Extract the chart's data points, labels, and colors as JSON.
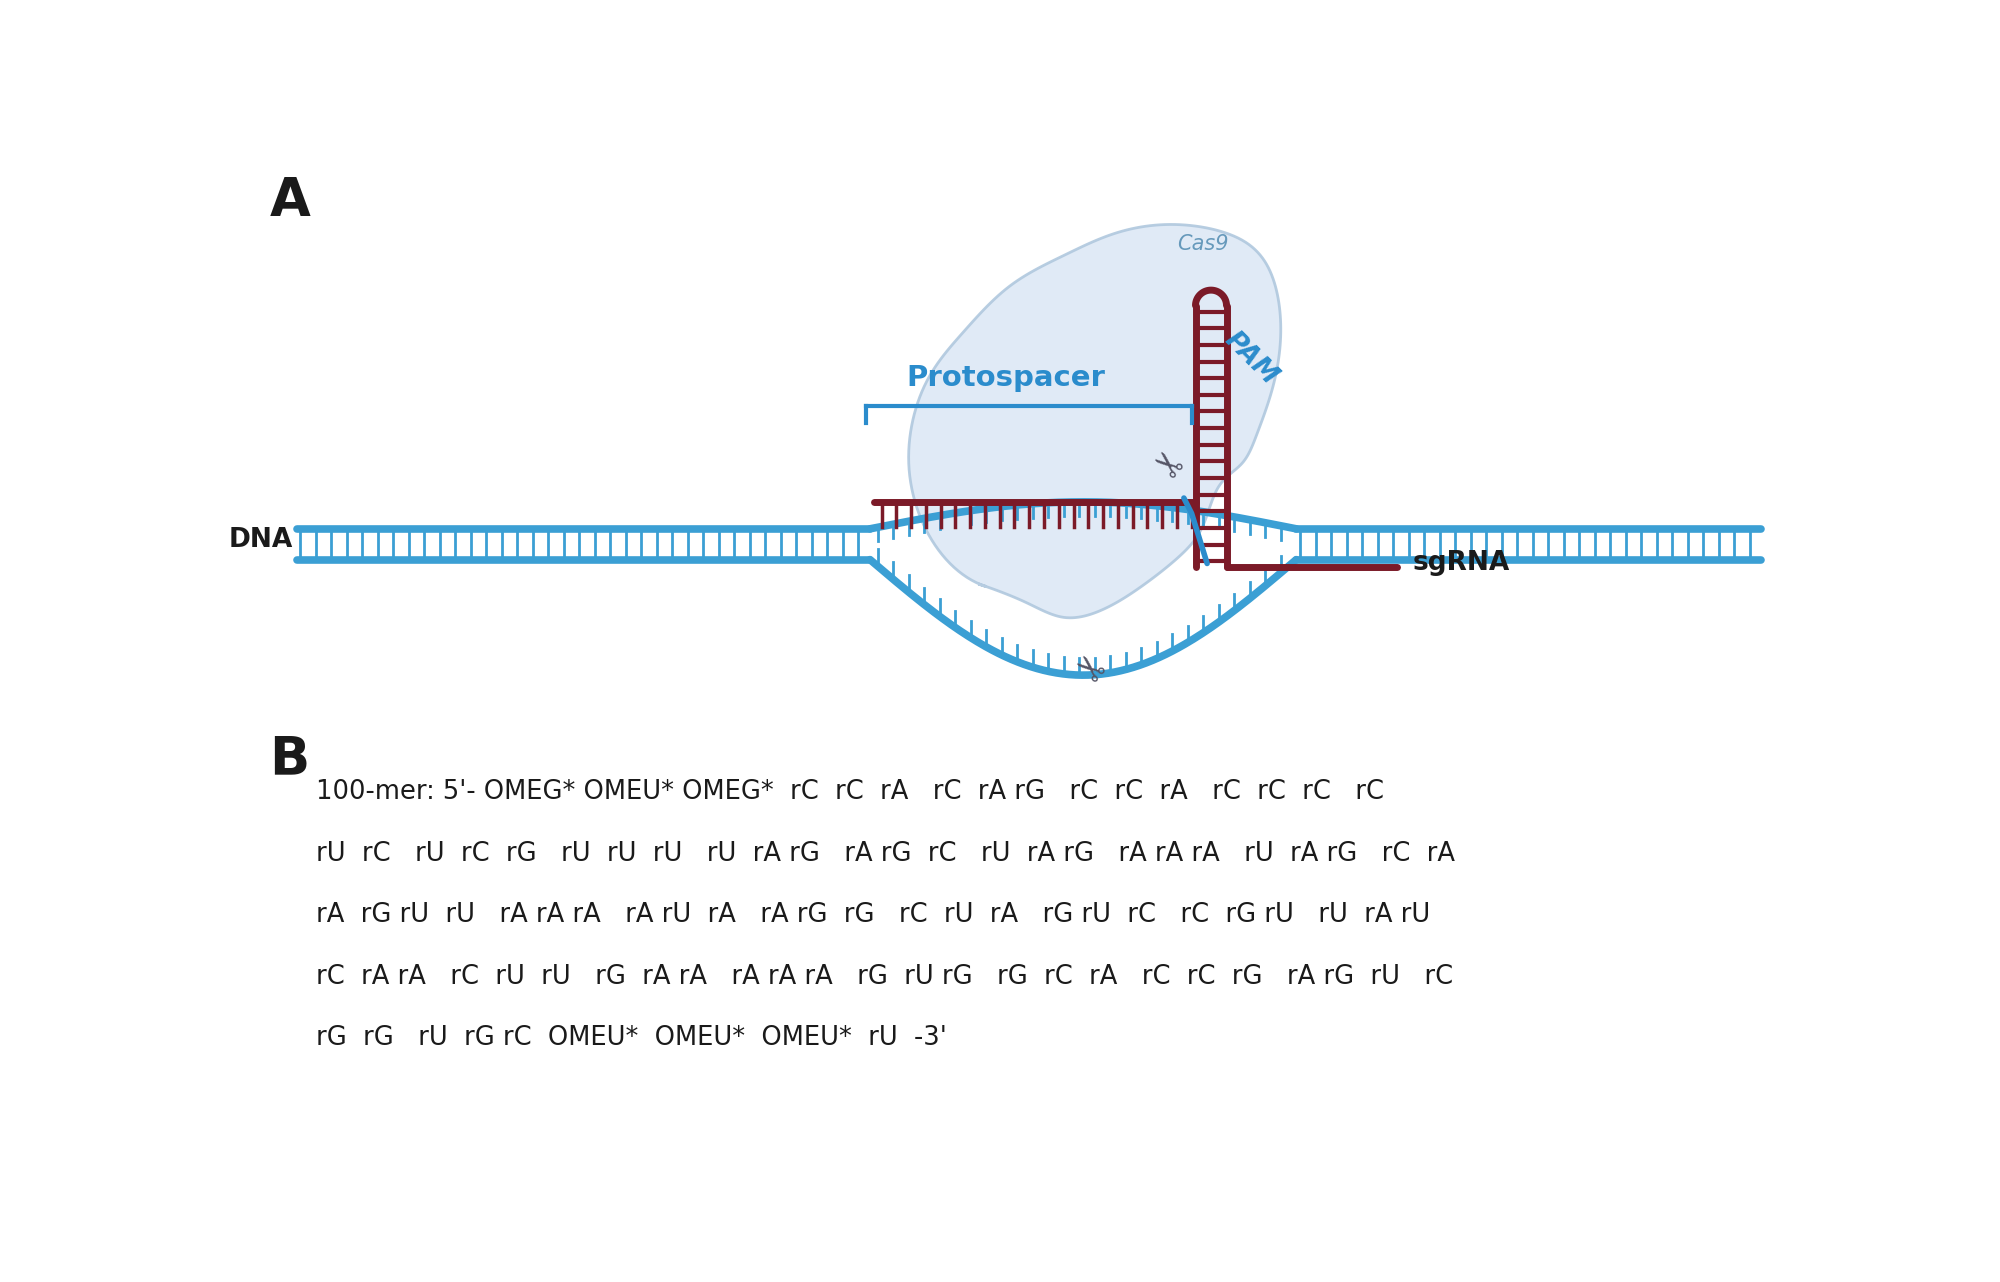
{
  "panel_a_label": "A",
  "panel_b_label": "B",
  "cas9_label": "Cas9",
  "protospacer_label": "Protospacer",
  "pam_label": "PAM",
  "dna_label": "DNA",
  "sgrna_label": "sgRNA",
  "seq_line1": "100-mer: 5'- OMEG* OMEU* OMEG*  rC  rC  rA   rC  rA rG   rC  rC  rA   rC  rC  rC   rC",
  "seq_line2": "rU  rC   rU  rC  rG   rU  rU  rU   rU  rA rG   rA rG  rC   rU  rA rG   rA rA rA   rU  rA rG   rC  rA",
  "seq_line3": "rA  rG rU  rU   rA rA rA   rA rU  rA   rA rG  rG   rC  rU  rA   rG rU  rC   rC  rG rU   rU  rA rU",
  "seq_line4": "rC  rA rA   rC  rU  rU   rG  rA rA   rA rA rA   rG  rU rG   rG  rC  rA   rC  rC  rG   rA rG  rU   rC",
  "seq_line5": "rG  rG   rU  rG rC  OMEU*  OMEU*  OMEU*  rU  -3'",
  "bg_color": "#ffffff",
  "cas9_blob_color": "#dde8f5",
  "cas9_blob_edge": "#b0c8de",
  "dna_color": "#3b9fd4",
  "dna_dark": "#1a5c8a",
  "sgrna_color": "#7b1a28",
  "protospacer_color": "#2b8ccc",
  "text_color": "#1a1a1a",
  "label_color_cas9": "#6699bb",
  "scissors_color": "#555566"
}
